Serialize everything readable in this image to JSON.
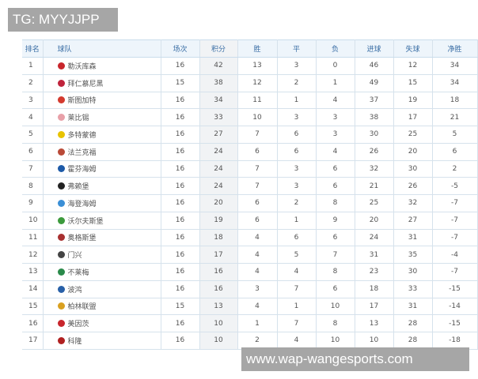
{
  "watermark_top": "TG: MYYJJPP",
  "watermark_bottom": "www.wap-wangesports.com",
  "headers": [
    "排名",
    "球队",
    "场次",
    "积分",
    "胜",
    "平",
    "负",
    "进球",
    "失球",
    "净胜"
  ],
  "rows": [
    {
      "rank": "1",
      "team": "勒沃库森",
      "played": "16",
      "pts": "42",
      "w": "13",
      "d": "3",
      "l": "0",
      "gf": "46",
      "ga": "12",
      "gd": "34",
      "logo_color": "#c8262c"
    },
    {
      "rank": "2",
      "team": "拜仁慕尼黑",
      "played": "15",
      "pts": "38",
      "w": "12",
      "d": "2",
      "l": "1",
      "gf": "49",
      "ga": "15",
      "gd": "34",
      "logo_color": "#c0243c"
    },
    {
      "rank": "3",
      "team": "斯图加特",
      "played": "16",
      "pts": "34",
      "w": "11",
      "d": "1",
      "l": "4",
      "gf": "37",
      "ga": "19",
      "gd": "18",
      "logo_color": "#d43a2e"
    },
    {
      "rank": "4",
      "team": "莱比锡",
      "played": "16",
      "pts": "33",
      "w": "10",
      "d": "3",
      "l": "3",
      "gf": "38",
      "ga": "17",
      "gd": "21",
      "logo_color": "#e8a0a8"
    },
    {
      "rank": "5",
      "team": "多特蒙德",
      "played": "16",
      "pts": "27",
      "w": "7",
      "d": "6",
      "l": "3",
      "gf": "30",
      "ga": "25",
      "gd": "5",
      "logo_color": "#e8c300"
    },
    {
      "rank": "6",
      "team": "法兰克福",
      "played": "16",
      "pts": "24",
      "w": "6",
      "d": "6",
      "l": "4",
      "gf": "26",
      "ga": "20",
      "gd": "6",
      "logo_color": "#b94a38"
    },
    {
      "rank": "7",
      "team": "霍芬海姆",
      "played": "16",
      "pts": "24",
      "w": "7",
      "d": "3",
      "l": "6",
      "gf": "32",
      "ga": "30",
      "gd": "2",
      "logo_color": "#1d5aa8"
    },
    {
      "rank": "8",
      "team": "弗赖堡",
      "played": "16",
      "pts": "24",
      "w": "7",
      "d": "3",
      "l": "6",
      "gf": "21",
      "ga": "26",
      "gd": "-5",
      "logo_color": "#222222"
    },
    {
      "rank": "9",
      "team": "海登海姆",
      "played": "16",
      "pts": "20",
      "w": "6",
      "d": "2",
      "l": "8",
      "gf": "25",
      "ga": "32",
      "gd": "-7",
      "logo_color": "#3b8fd6"
    },
    {
      "rank": "10",
      "team": "沃尔夫斯堡",
      "played": "16",
      "pts": "19",
      "w": "6",
      "d": "1",
      "l": "9",
      "gf": "20",
      "ga": "27",
      "gd": "-7",
      "logo_color": "#3c9a3c"
    },
    {
      "rank": "11",
      "team": "奥格斯堡",
      "played": "16",
      "pts": "18",
      "w": "4",
      "d": "6",
      "l": "6",
      "gf": "24",
      "ga": "31",
      "gd": "-7",
      "logo_color": "#a83030"
    },
    {
      "rank": "12",
      "team": "门兴",
      "played": "16",
      "pts": "17",
      "w": "4",
      "d": "5",
      "l": "7",
      "gf": "31",
      "ga": "35",
      "gd": "-4",
      "logo_color": "#444444"
    },
    {
      "rank": "13",
      "team": "不莱梅",
      "played": "16",
      "pts": "16",
      "w": "4",
      "d": "4",
      "l": "8",
      "gf": "23",
      "ga": "30",
      "gd": "-7",
      "logo_color": "#2a8a4a"
    },
    {
      "rank": "14",
      "team": "波鸿",
      "played": "16",
      "pts": "16",
      "w": "3",
      "d": "7",
      "l": "6",
      "gf": "18",
      "ga": "33",
      "gd": "-15",
      "logo_color": "#2860a8"
    },
    {
      "rank": "15",
      "team": "柏林联盟",
      "played": "15",
      "pts": "13",
      "w": "4",
      "d": "1",
      "l": "10",
      "gf": "17",
      "ga": "31",
      "gd": "-14",
      "logo_color": "#d9a020"
    },
    {
      "rank": "16",
      "team": "美因茨",
      "played": "16",
      "pts": "10",
      "w": "1",
      "d": "7",
      "l": "8",
      "gf": "13",
      "ga": "28",
      "gd": "-15",
      "logo_color": "#c8262c"
    },
    {
      "rank": "17",
      "team": "科隆",
      "played": "16",
      "pts": "10",
      "w": "2",
      "d": "4",
      "l": "10",
      "gf": "10",
      "ga": "28",
      "gd": "-18",
      "logo_color": "#b02020"
    }
  ]
}
